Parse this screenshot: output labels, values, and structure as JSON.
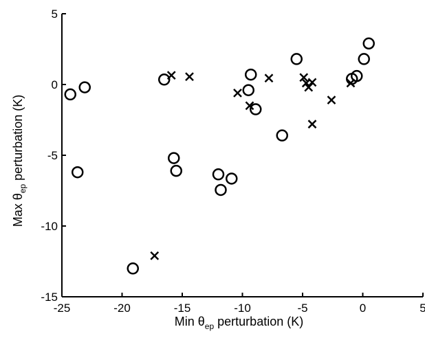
{
  "chart_data": {
    "type": "scatter",
    "xlabel": {
      "pre": "Min ",
      "sym": "θ",
      "sub": "ep",
      "post": " perturbation (K)"
    },
    "ylabel": {
      "pre": "Max ",
      "sym": "θ",
      "sub": "ep",
      "post": " perturbation (K)"
    },
    "xlim": [
      -25,
      5
    ],
    "ylim": [
      -15,
      5
    ],
    "xticks": [
      -25,
      -20,
      -15,
      -10,
      -5,
      0,
      5
    ],
    "yticks": [
      -15,
      -10,
      -5,
      0,
      5
    ],
    "xtick_labels": [
      "-25",
      "-20",
      "-15",
      "-10",
      "-5",
      "0",
      "5"
    ],
    "ytick_labels": [
      "-15",
      "-10",
      "-5",
      "0",
      "5"
    ],
    "grid": false,
    "series": [
      {
        "marker": "circle",
        "points": [
          [
            -24.3,
            -0.7
          ],
          [
            -23.1,
            -0.2
          ],
          [
            -23.7,
            -6.2
          ],
          [
            -19.1,
            -13.0
          ],
          [
            -16.5,
            0.35
          ],
          [
            -15.7,
            -5.2
          ],
          [
            -15.5,
            -6.1
          ],
          [
            -12.0,
            -6.35
          ],
          [
            -11.8,
            -7.45
          ],
          [
            -10.9,
            -6.65
          ],
          [
            -9.5,
            -0.4
          ],
          [
            -9.3,
            0.7
          ],
          [
            -8.9,
            -1.75
          ],
          [
            -6.7,
            -3.6
          ],
          [
            -5.5,
            1.8
          ],
          [
            -0.9,
            0.4
          ],
          [
            -0.5,
            0.6
          ],
          [
            0.1,
            1.8
          ],
          [
            0.5,
            2.9
          ]
        ]
      },
      {
        "marker": "x",
        "points": [
          [
            -17.3,
            -12.1
          ],
          [
            -15.9,
            0.65
          ],
          [
            -14.4,
            0.55
          ],
          [
            -10.4,
            -0.6
          ],
          [
            -9.4,
            -1.5
          ],
          [
            -7.8,
            0.45
          ],
          [
            -4.9,
            0.5
          ],
          [
            -4.7,
            0.1
          ],
          [
            -4.5,
            -0.2
          ],
          [
            -4.2,
            0.15
          ],
          [
            -4.2,
            -2.8
          ],
          [
            -2.6,
            -1.1
          ],
          [
            -1.0,
            0.1
          ]
        ]
      }
    ]
  }
}
